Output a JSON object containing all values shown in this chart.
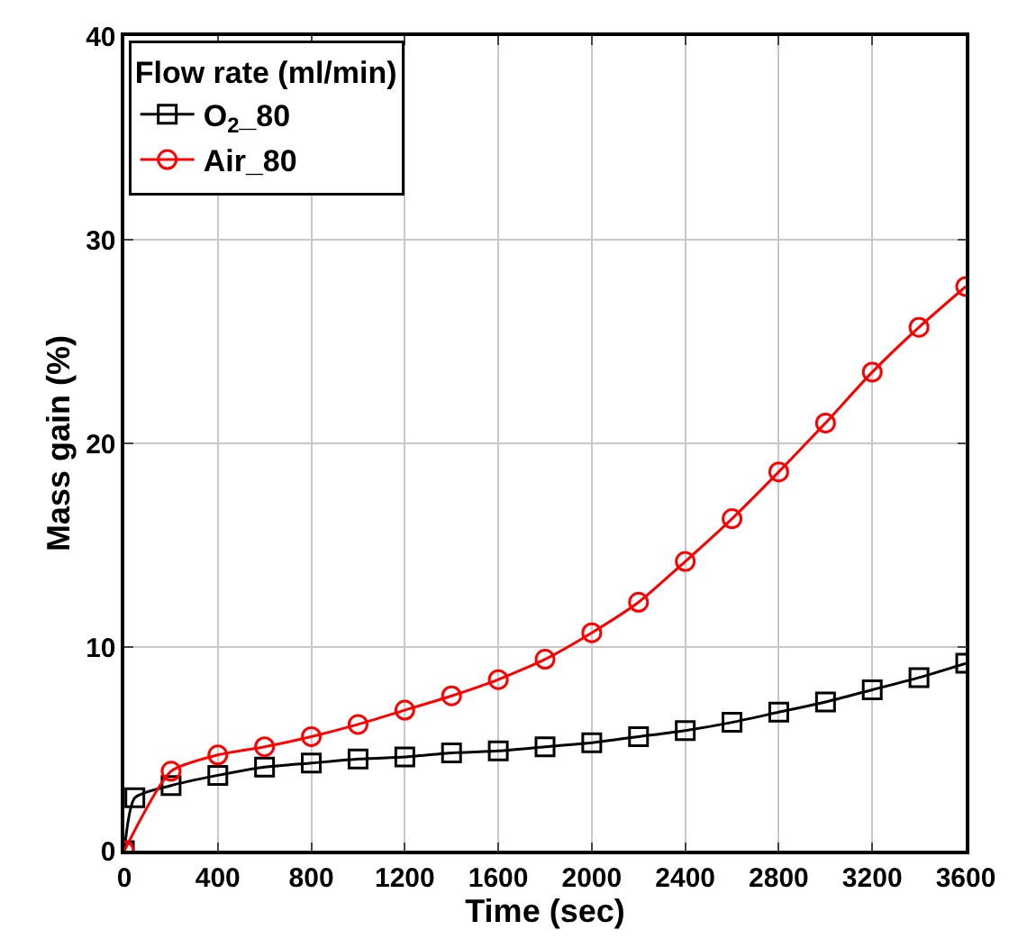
{
  "chart_data": {
    "type": "line",
    "xlabel": "Time (sec)",
    "ylabel": "Mass gain (%)",
    "legend_title": "Flow rate (ml/min)",
    "legend": "top left",
    "grid": true,
    "line_style": "solid",
    "xlim": [
      0,
      3600
    ],
    "xticks": [
      0,
      400,
      800,
      1200,
      1600,
      2000,
      2400,
      2800,
      3200,
      3600
    ],
    "ylim": [
      0,
      40
    ],
    "yticks": [
      0,
      10,
      20,
      30,
      40
    ],
    "series": [
      {
        "name": "O$_{2}$_80",
        "color": "#000000",
        "marker": "square",
        "x": [
          0,
          45,
          200,
          400,
          600,
          800,
          1000,
          1200,
          1400,
          1600,
          1800,
          2000,
          2200,
          2400,
          2600,
          2800,
          3000,
          3200,
          3400,
          3600
        ],
        "values": [
          0,
          2.6,
          3.2,
          3.7,
          4.1,
          4.3,
          4.5,
          4.6,
          4.8,
          4.9,
          5.1,
          5.3,
          5.6,
          5.9,
          6.3,
          6.8,
          7.3,
          7.9,
          8.5,
          9.2
        ]
      },
      {
        "name": "Air_80",
        "color": "#ff0000",
        "marker": "circle",
        "x": [
          0,
          200,
          400,
          600,
          800,
          1000,
          1200,
          1400,
          1600,
          1800,
          2000,
          2200,
          2400,
          2600,
          2800,
          3000,
          3200,
          3400,
          3600
        ],
        "values": [
          0,
          3.9,
          4.7,
          5.1,
          5.6,
          6.2,
          6.9,
          7.6,
          8.4,
          9.4,
          10.7,
          12.2,
          14.2,
          16.3,
          18.6,
          21.0,
          23.5,
          25.7,
          27.7
        ]
      }
    ]
  }
}
